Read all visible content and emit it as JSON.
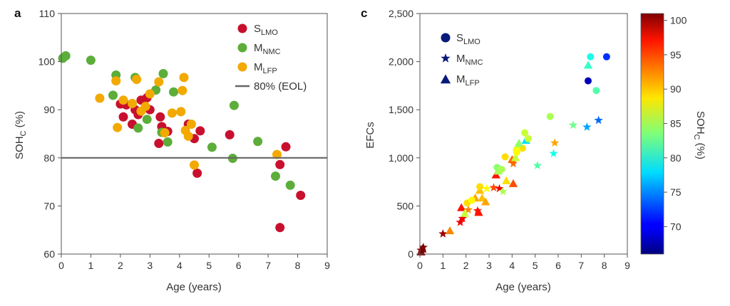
{
  "chart_data": [
    {
      "panel": "a",
      "type": "scatter",
      "xlabel": "Age (years)",
      "ylabel": "SOH",
      "ylabel_sub": "C",
      "ylabel_unit": " (%)",
      "xlim": [
        0,
        9
      ],
      "ylim": [
        60,
        110
      ],
      "xticks": [
        "0",
        "1",
        "2",
        "3",
        "4",
        "5",
        "6",
        "7",
        "8",
        "9"
      ],
      "yticks": [
        "60",
        "70",
        "80",
        "90",
        "100",
        "110"
      ],
      "hline": {
        "y": 80,
        "label": "80% (EOL)",
        "color": "#666666"
      },
      "legend_position": "top-right",
      "series": [
        {
          "name": "S",
          "sub": "LMO",
          "color": "#c8102e",
          "points": [
            [
              2.0,
              91.2
            ],
            [
              2.1,
              88.5
            ],
            [
              2.2,
              91.0
            ],
            [
              2.4,
              87.0
            ],
            [
              2.5,
              90.0
            ],
            [
              2.6,
              89.0
            ],
            [
              2.7,
              92.0
            ],
            [
              2.9,
              92.5
            ],
            [
              3.0,
              90.0
            ],
            [
              3.3,
              83.0
            ],
            [
              3.35,
              88.5
            ],
            [
              3.4,
              86.5
            ],
            [
              3.6,
              85.5
            ],
            [
              4.3,
              87.0
            ],
            [
              4.5,
              84.0
            ],
            [
              4.6,
              76.8
            ],
            [
              4.7,
              85.6
            ],
            [
              5.7,
              84.8
            ],
            [
              7.4,
              78.6
            ],
            [
              7.4,
              65.5
            ],
            [
              7.6,
              82.3
            ],
            [
              8.1,
              72.2
            ]
          ]
        },
        {
          "name": "M",
          "sub": "NMC",
          "color": "#5cad3a",
          "points": [
            [
              0.05,
              100.7
            ],
            [
              0.15,
              101.2
            ],
            [
              1.0,
              100.3
            ],
            [
              1.75,
              93.0
            ],
            [
              1.85,
              97.2
            ],
            [
              2.5,
              96.7
            ],
            [
              2.6,
              86.2
            ],
            [
              2.9,
              88.0
            ],
            [
              3.2,
              94.1
            ],
            [
              3.4,
              85.3
            ],
            [
              3.45,
              97.5
            ],
            [
              3.6,
              83.3
            ],
            [
              3.8,
              93.7
            ],
            [
              5.1,
              82.2
            ],
            [
              5.8,
              79.9
            ],
            [
              5.85,
              90.9
            ],
            [
              6.65,
              83.4
            ],
            [
              7.25,
              76.2
            ],
            [
              7.75,
              74.3
            ]
          ]
        },
        {
          "name": "M",
          "sub": "LFP",
          "color": "#f2a900",
          "points": [
            [
              1.3,
              92.4
            ],
            [
              1.85,
              96.0
            ],
            [
              1.9,
              86.3
            ],
            [
              2.1,
              92.0
            ],
            [
              2.4,
              91.3
            ],
            [
              2.55,
              96.3
            ],
            [
              2.7,
              89.7
            ],
            [
              2.85,
              90.7
            ],
            [
              3.0,
              93.3
            ],
            [
              3.3,
              95.8
            ],
            [
              3.5,
              85.2
            ],
            [
              3.75,
              89.3
            ],
            [
              4.05,
              89.6
            ],
            [
              4.15,
              96.7
            ],
            [
              4.1,
              94.0
            ],
            [
              4.2,
              85.7
            ],
            [
              4.4,
              87.0
            ],
            [
              4.3,
              84.5
            ],
            [
              4.5,
              78.5
            ],
            [
              7.3,
              80.7
            ]
          ]
        }
      ]
    },
    {
      "panel": "c",
      "type": "scatter",
      "xlabel": "Age (years)",
      "ylabel": "EFCs",
      "xlim": [
        0,
        9
      ],
      "ylim": [
        0,
        2500
      ],
      "xticks": [
        "0",
        "1",
        "2",
        "3",
        "4",
        "5",
        "6",
        "7",
        "8",
        "9"
      ],
      "yticks": [
        "0",
        "500",
        "1,000",
        "1,500",
        "2,000",
        "2,500"
      ],
      "legend_position": "top-left",
      "colorbar": {
        "label": "SOH",
        "label_sub": "C",
        "label_unit": " (%)",
        "min": 66,
        "max": 101,
        "ticks": [
          70,
          75,
          80,
          85,
          90,
          95,
          100
        ]
      },
      "series": [
        {
          "name": "S",
          "sub": "LMO",
          "marker": "circle",
          "points": [
            [
              4.45,
              1100,
              89
            ],
            [
              7.3,
              1800,
              68
            ],
            [
              7.4,
              2050,
              80
            ],
            [
              8.1,
              2050,
              72
            ]
          ]
        },
        {
          "name": "M",
          "sub": "NMC",
          "marker": "star",
          "points": [
            [
              0.05,
              40,
              101
            ],
            [
              0.15,
              70,
              101
            ],
            [
              1.0,
              210,
              100
            ],
            [
              1.75,
              330,
              97
            ],
            [
              1.85,
              370,
              97
            ],
            [
              2.1,
              460,
              92
            ],
            [
              2.5,
              450,
              96
            ],
            [
              2.9,
              680,
              88
            ],
            [
              3.2,
              690,
              94
            ],
            [
              3.45,
              680,
              97
            ],
            [
              3.6,
              650,
              85
            ],
            [
              4.05,
              940,
              93
            ],
            [
              5.1,
              920,
              82
            ],
            [
              5.8,
              1045,
              80
            ],
            [
              5.85,
              1155,
              91
            ],
            [
              6.65,
              1340,
              83
            ],
            [
              7.25,
              1320,
              76
            ],
            [
              7.75,
              1390,
              74
            ]
          ]
        },
        {
          "name": "M",
          "sub": "LFP",
          "marker": "triangle",
          "points": [
            [
              0.05,
              20,
              101
            ],
            [
              0.1,
              50,
              101
            ],
            [
              1.3,
              240,
              92
            ],
            [
              1.8,
              480,
              96
            ],
            [
              1.95,
              420,
              86
            ],
            [
              2.4,
              580,
              91
            ],
            [
              2.55,
              430,
              96
            ],
            [
              2.6,
              660,
              90
            ],
            [
              2.7,
              580,
              90
            ],
            [
              2.85,
              540,
              91
            ],
            [
              3.3,
              820,
              96
            ],
            [
              3.4,
              860,
              85
            ],
            [
              3.75,
              760,
              89
            ],
            [
              4.0,
              980,
              93
            ],
            [
              4.05,
              730,
              94
            ],
            [
              4.15,
              1000,
              86
            ],
            [
              4.2,
              1110,
              87
            ],
            [
              4.3,
              1150,
              84
            ],
            [
              4.6,
              1180,
              78
            ],
            [
              7.3,
              1960,
              81
            ]
          ]
        },
        {
          "name": "",
          "sub": "",
          "marker": "circle",
          "points": [
            [
              2.05,
              530,
              89
            ],
            [
              2.25,
              560,
              88
            ],
            [
              2.6,
              700,
              89
            ],
            [
              3.35,
              900,
              84
            ],
            [
              3.55,
              880,
              85
            ],
            [
              3.7,
              1010,
              89
            ],
            [
              4.2,
              1060,
              88
            ],
            [
              4.55,
              1260,
              86
            ],
            [
              4.7,
              1200,
              86
            ],
            [
              5.65,
              1430,
              85
            ],
            [
              7.65,
              1700,
              82
            ]
          ]
        }
      ]
    }
  ]
}
